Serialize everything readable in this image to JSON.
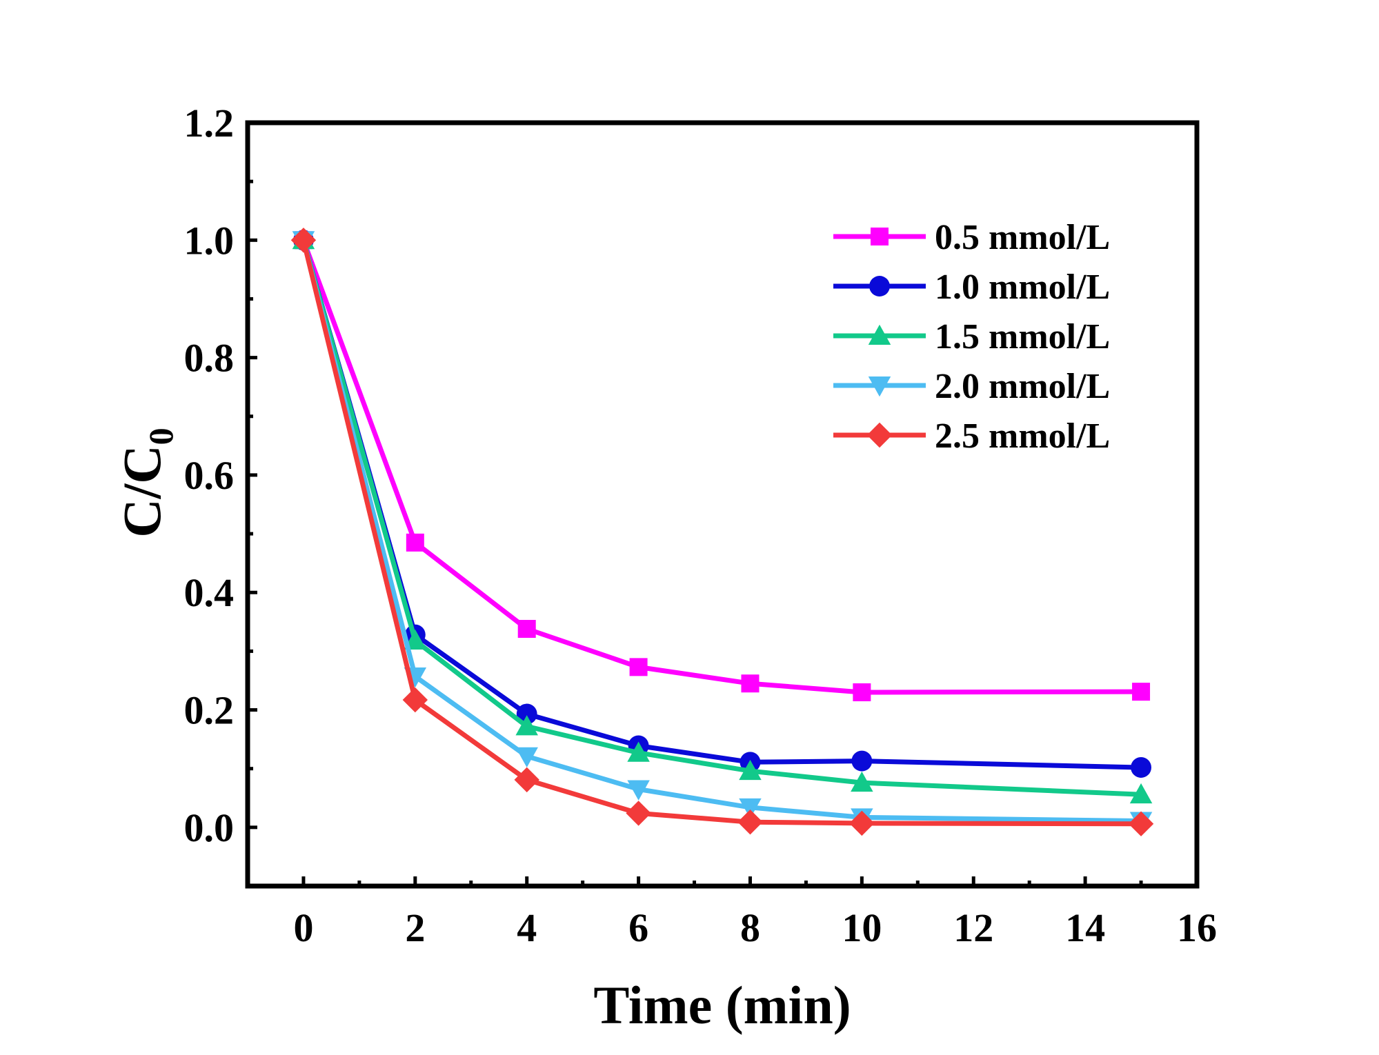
{
  "chart_data": {
    "type": "line",
    "title": "",
    "xlabel": "Time (min)",
    "ylabel": "C/C",
    "ylabel_subscript": "0",
    "xlim": [
      -1,
      16
    ],
    "ylim": [
      -0.1,
      1.2
    ],
    "x_ticks": [
      0,
      2,
      4,
      6,
      8,
      10,
      12,
      14,
      16
    ],
    "x_tick_labels": [
      "0",
      "2",
      "4",
      "6",
      "8",
      "10",
      "12",
      "14",
      "16"
    ],
    "y_ticks": [
      0.0,
      0.2,
      0.4,
      0.6,
      0.8,
      1.0,
      1.2
    ],
    "y_tick_labels": [
      "0.0",
      "0.2",
      "0.4",
      "0.6",
      "0.8",
      "1.0",
      "1.2"
    ],
    "grid": false,
    "legend_position": "top-right",
    "x": [
      0,
      2,
      4,
      6,
      8,
      10,
      15
    ],
    "series": [
      {
        "name": "0.5 mmol/L",
        "color": "#FF00FF",
        "marker": "square",
        "values": [
          1.0,
          0.485,
          0.338,
          0.273,
          0.245,
          0.23,
          0.231
        ]
      },
      {
        "name": "1.0 mmol/L",
        "color": "#0A0AD8",
        "marker": "circle",
        "values": [
          1.0,
          0.328,
          0.193,
          0.139,
          0.111,
          0.113,
          0.102
        ]
      },
      {
        "name": "1.5 mmol/L",
        "color": "#12C98A",
        "marker": "triangle-up",
        "values": [
          1.0,
          0.318,
          0.172,
          0.127,
          0.096,
          0.076,
          0.056
        ]
      },
      {
        "name": "2.0 mmol/L",
        "color": "#4DBCF2",
        "marker": "triangle-down",
        "values": [
          1.0,
          0.257,
          0.121,
          0.065,
          0.034,
          0.017,
          0.011
        ]
      },
      {
        "name": "2.5 mmol/L",
        "color": "#F23A3A",
        "marker": "diamond",
        "values": [
          1.0,
          0.217,
          0.081,
          0.024,
          0.009,
          0.007,
          0.006
        ]
      }
    ]
  }
}
